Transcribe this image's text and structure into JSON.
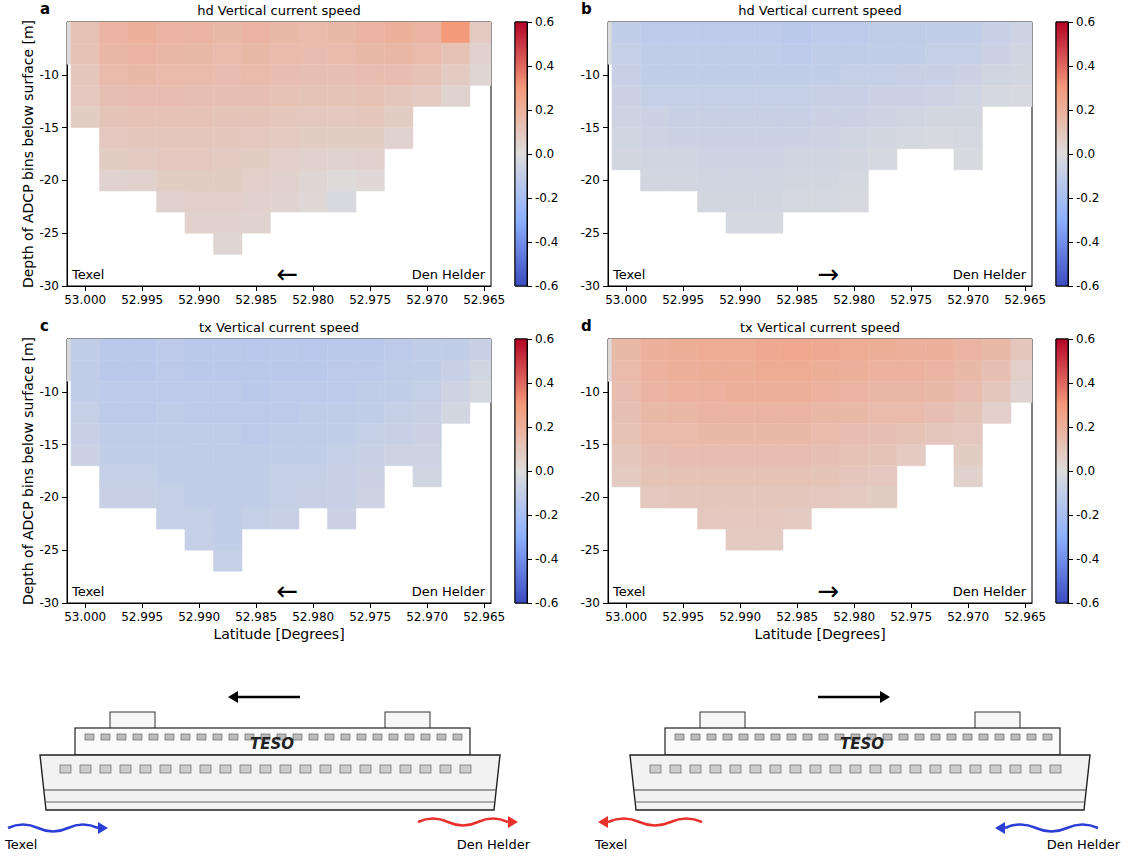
{
  "chart_data": [
    {
      "type": "heatmap",
      "panel_label": "a",
      "title": "hd Vertical current speed",
      "y_label": "Depth of ADCP bins below surface [m]",
      "x": [
        53.0025,
        53.0,
        52.9975,
        52.995,
        52.9925,
        52.99,
        52.9875,
        52.985,
        52.9825,
        52.98,
        52.9775,
        52.975,
        52.9725,
        52.97,
        52.9675,
        52.965
      ],
      "y": [
        -6,
        -8,
        -10,
        -12,
        -14,
        -16,
        -18,
        -20,
        -22,
        -24,
        -26
      ],
      "values": [
        [
          0.0,
          0.12,
          0.18,
          0.2,
          0.18,
          0.18,
          0.16,
          0.18,
          0.16,
          0.15,
          0.16,
          0.18,
          0.2,
          0.18,
          0.3,
          0.08
        ],
        [
          0.0,
          0.12,
          0.17,
          0.18,
          0.17,
          0.16,
          0.15,
          0.16,
          0.15,
          0.14,
          0.15,
          0.16,
          0.17,
          0.15,
          0.12,
          0.05
        ],
        [
          null,
          0.1,
          0.15,
          0.16,
          0.15,
          0.15,
          0.14,
          0.15,
          0.14,
          0.13,
          0.13,
          0.14,
          0.14,
          0.12,
          0.08,
          0.03
        ],
        [
          null,
          0.09,
          0.13,
          0.14,
          0.14,
          0.13,
          0.13,
          0.13,
          0.12,
          0.11,
          0.11,
          0.12,
          0.1,
          0.08,
          0.04,
          null
        ],
        [
          null,
          0.07,
          0.11,
          0.12,
          0.12,
          0.12,
          0.11,
          0.11,
          0.1,
          0.09,
          0.09,
          0.1,
          0.07,
          null,
          null,
          null
        ],
        [
          null,
          null,
          0.09,
          0.1,
          0.1,
          0.1,
          0.1,
          0.09,
          0.08,
          0.07,
          0.07,
          0.07,
          0.04,
          null,
          null,
          null
        ],
        [
          null,
          null,
          0.07,
          0.08,
          0.09,
          0.09,
          0.08,
          0.07,
          0.06,
          0.05,
          0.04,
          0.05,
          null,
          null,
          null,
          null
        ],
        [
          null,
          null,
          0.04,
          0.05,
          0.07,
          0.07,
          0.07,
          0.06,
          0.05,
          0.03,
          0.01,
          0.02,
          null,
          null,
          null,
          null
        ],
        [
          null,
          null,
          null,
          null,
          0.05,
          0.06,
          0.06,
          0.05,
          0.04,
          0.02,
          -0.02,
          null,
          null,
          null,
          null,
          null
        ],
        [
          null,
          null,
          null,
          null,
          null,
          0.05,
          0.05,
          0.04,
          null,
          null,
          null,
          null,
          null,
          null,
          null,
          null
        ],
        [
          null,
          null,
          null,
          null,
          null,
          null,
          0.03,
          null,
          null,
          null,
          null,
          null,
          null,
          null,
          null,
          null
        ]
      ],
      "xlim": [
        53.0016,
        52.9644
      ],
      "xticks": [
        {
          "value": 53,
          "label": "53.000"
        },
        52.995,
        {
          "value": 52.99,
          "label": "52.990"
        },
        52.985,
        {
          "value": 52.98,
          "label": "52.980"
        },
        52.975,
        {
          "value": 52.97,
          "label": "52.970"
        },
        52.965
      ],
      "ylim": [
        -30,
        -5
      ],
      "yticks": [
        -30,
        -25,
        -20,
        -15,
        -10
      ],
      "colorbar": {
        "range": [
          -0.6,
          0.6
        ],
        "ticks": [
          -0.6,
          -0.4,
          -0.2,
          {
            "value": 0,
            "label": "0.0"
          },
          0.2,
          0.4,
          0.6
        ]
      },
      "annotations": [
        "Texel",
        "←",
        "Den Helder"
      ]
    },
    {
      "type": "heatmap",
      "panel_label": "b",
      "title": "hd Vertical current speed",
      "x": [
        53.0025,
        53.0,
        52.9975,
        52.995,
        52.9925,
        52.99,
        52.9875,
        52.985,
        52.9825,
        52.98,
        52.9775,
        52.975,
        52.9725,
        52.97,
        52.9675,
        52.965
      ],
      "y": [
        -6,
        -8,
        -10,
        -12,
        -14,
        -16,
        -18,
        -20,
        -22,
        -24,
        -26
      ],
      "values": [
        [
          0.0,
          -0.1,
          -0.12,
          -0.12,
          -0.12,
          -0.12,
          -0.12,
          -0.13,
          -0.12,
          -0.12,
          -0.11,
          -0.11,
          -0.1,
          -0.1,
          -0.08,
          -0.06
        ],
        [
          -0.02,
          -0.09,
          -0.11,
          -0.11,
          -0.11,
          -0.11,
          -0.11,
          -0.12,
          -0.11,
          -0.11,
          -0.1,
          -0.1,
          -0.09,
          -0.09,
          -0.07,
          -0.05
        ],
        [
          null,
          -0.08,
          -0.1,
          -0.1,
          -0.1,
          -0.1,
          -0.1,
          -0.1,
          -0.1,
          -0.09,
          -0.09,
          -0.08,
          -0.08,
          -0.07,
          -0.05,
          -0.04
        ],
        [
          null,
          -0.07,
          -0.09,
          -0.09,
          -0.09,
          -0.09,
          -0.09,
          -0.09,
          -0.08,
          -0.08,
          -0.07,
          -0.07,
          -0.06,
          -0.05,
          -0.03,
          -0.02
        ],
        [
          null,
          -0.06,
          -0.07,
          -0.08,
          -0.08,
          -0.08,
          -0.08,
          -0.08,
          -0.07,
          -0.07,
          -0.06,
          -0.05,
          -0.04,
          -0.04,
          null,
          null
        ],
        [
          null,
          -0.05,
          -0.06,
          -0.07,
          -0.07,
          -0.07,
          -0.07,
          -0.07,
          -0.06,
          -0.05,
          -0.04,
          -0.03,
          -0.02,
          -0.03,
          null,
          null
        ],
        [
          null,
          -0.04,
          -0.05,
          -0.05,
          -0.06,
          -0.06,
          -0.06,
          -0.05,
          -0.05,
          -0.04,
          -0.03,
          null,
          null,
          -0.02,
          null,
          null
        ],
        [
          null,
          null,
          -0.04,
          -0.04,
          -0.05,
          -0.05,
          -0.05,
          -0.04,
          -0.04,
          -0.03,
          null,
          null,
          null,
          null,
          null,
          null
        ],
        [
          null,
          null,
          null,
          null,
          -0.04,
          -0.04,
          -0.04,
          -0.03,
          -0.03,
          -0.02,
          null,
          null,
          null,
          null,
          null,
          null
        ],
        [
          null,
          null,
          null,
          null,
          null,
          -0.03,
          -0.03,
          null,
          null,
          null,
          null,
          null,
          null,
          null,
          null,
          null
        ],
        [
          null,
          null,
          null,
          null,
          null,
          null,
          null,
          null,
          null,
          null,
          null,
          null,
          null,
          null,
          null,
          null
        ]
      ],
      "xlim": [
        53.0016,
        52.9644
      ],
      "xticks": [
        {
          "value": 53,
          "label": "53.000"
        },
        52.995,
        {
          "value": 52.99,
          "label": "52.990"
        },
        52.985,
        {
          "value": 52.98,
          "label": "52.980"
        },
        52.975,
        {
          "value": 52.97,
          "label": "52.970"
        },
        52.965
      ],
      "ylim": [
        -30,
        -5
      ],
      "yticks": [
        -30,
        -25,
        -20,
        -15,
        -10
      ],
      "colorbar": {
        "range": [
          -0.6,
          0.6
        ],
        "ticks": [
          -0.6,
          -0.4,
          -0.2,
          {
            "value": 0,
            "label": "0.0"
          },
          0.2,
          0.4,
          0.6
        ]
      },
      "annotations": [
        "Texel",
        "→",
        "Den Helder"
      ]
    },
    {
      "type": "heatmap",
      "panel_label": "c",
      "title": "tx Vertical current speed",
      "x_label": "Latitude [Degrees]",
      "y_label": "Depth of ADCP bins below surface [m]",
      "x": [
        53.0025,
        53.0,
        52.9975,
        52.995,
        52.9925,
        52.99,
        52.9875,
        52.985,
        52.9825,
        52.98,
        52.9775,
        52.975,
        52.9725,
        52.97,
        52.9675,
        52.965
      ],
      "y": [
        -6,
        -8,
        -10,
        -12,
        -14,
        -16,
        -18,
        -20,
        -22,
        -24,
        -26
      ],
      "values": [
        [
          -0.02,
          -0.1,
          -0.13,
          -0.13,
          -0.12,
          -0.13,
          -0.13,
          -0.14,
          -0.13,
          -0.14,
          -0.13,
          -0.13,
          -0.12,
          -0.1,
          -0.1,
          -0.08
        ],
        [
          -0.02,
          -0.1,
          -0.13,
          -0.13,
          -0.12,
          -0.13,
          -0.13,
          -0.13,
          -0.13,
          -0.13,
          -0.12,
          -0.12,
          -0.11,
          -0.1,
          -0.08,
          -0.05
        ],
        [
          null,
          -0.1,
          -0.12,
          -0.12,
          -0.12,
          -0.12,
          -0.12,
          -0.13,
          -0.12,
          -0.12,
          -0.12,
          -0.11,
          -0.1,
          -0.09,
          -0.06,
          -0.03
        ],
        [
          null,
          -0.09,
          -0.12,
          -0.12,
          -0.11,
          -0.12,
          -0.12,
          -0.12,
          -0.12,
          -0.11,
          -0.11,
          -0.1,
          -0.09,
          -0.08,
          -0.04,
          null
        ],
        [
          null,
          -0.08,
          -0.11,
          -0.11,
          -0.11,
          -0.11,
          -0.11,
          -0.12,
          -0.11,
          -0.11,
          -0.1,
          -0.09,
          -0.08,
          -0.07,
          null,
          null
        ],
        [
          null,
          -0.07,
          -0.1,
          -0.1,
          -0.1,
          -0.11,
          -0.11,
          -0.11,
          -0.1,
          -0.1,
          -0.09,
          -0.08,
          -0.06,
          -0.06,
          null,
          null
        ],
        [
          null,
          null,
          -0.09,
          -0.09,
          -0.1,
          -0.1,
          -0.1,
          -0.1,
          -0.09,
          -0.09,
          -0.08,
          -0.07,
          null,
          -0.05,
          null,
          null
        ],
        [
          null,
          null,
          -0.08,
          -0.08,
          -0.09,
          -0.1,
          -0.1,
          -0.1,
          -0.09,
          -0.08,
          -0.08,
          -0.06,
          null,
          null,
          null,
          null
        ],
        [
          null,
          null,
          null,
          null,
          -0.09,
          -0.09,
          -0.1,
          -0.09,
          -0.08,
          null,
          -0.07,
          null,
          null,
          null,
          null,
          null
        ],
        [
          null,
          null,
          null,
          null,
          null,
          -0.09,
          -0.1,
          null,
          null,
          null,
          null,
          null,
          null,
          null,
          null,
          null
        ],
        [
          null,
          null,
          null,
          null,
          null,
          null,
          -0.09,
          null,
          null,
          null,
          null,
          null,
          null,
          null,
          null,
          null
        ]
      ],
      "xlim": [
        53.0016,
        52.9644
      ],
      "xticks": [
        {
          "value": 53,
          "label": "53.000"
        },
        52.995,
        {
          "value": 52.99,
          "label": "52.990"
        },
        52.985,
        {
          "value": 52.98,
          "label": "52.980"
        },
        52.975,
        {
          "value": 52.97,
          "label": "52.970"
        },
        52.965
      ],
      "ylim": [
        -30,
        -5
      ],
      "yticks": [
        -30,
        -25,
        -20,
        -15,
        -10
      ],
      "colorbar": {
        "range": [
          -0.6,
          0.6
        ],
        "ticks": [
          -0.6,
          -0.4,
          -0.2,
          {
            "value": 0,
            "label": "0.0"
          },
          0.2,
          0.4,
          0.6
        ]
      },
      "annotations": [
        "Texel",
        "←",
        "Den Helder"
      ]
    },
    {
      "type": "heatmap",
      "panel_label": "d",
      "title": "tx Vertical current speed",
      "x_label": "Latitude [Degrees]",
      "x": [
        53.0025,
        53.0,
        52.9975,
        52.995,
        52.9925,
        52.99,
        52.9875,
        52.985,
        52.9825,
        52.98,
        52.9775,
        52.975,
        52.9725,
        52.97,
        52.9675,
        52.965
      ],
      "y": [
        -6,
        -8,
        -10,
        -12,
        -14,
        -16,
        -18,
        -20,
        -22,
        -24,
        -26
      ],
      "values": [
        [
          0.02,
          0.16,
          0.2,
          0.21,
          0.22,
          0.22,
          0.23,
          0.24,
          0.23,
          0.22,
          0.21,
          0.2,
          0.2,
          0.18,
          0.16,
          0.1
        ],
        [
          0.02,
          0.15,
          0.19,
          0.2,
          0.21,
          0.21,
          0.22,
          0.22,
          0.21,
          0.2,
          0.19,
          0.19,
          0.18,
          0.16,
          0.13,
          0.06
        ],
        [
          null,
          0.14,
          0.18,
          0.19,
          0.19,
          0.2,
          0.2,
          0.2,
          0.19,
          0.18,
          0.17,
          0.17,
          0.16,
          0.14,
          0.1,
          0.04
        ],
        [
          null,
          0.13,
          0.16,
          0.17,
          0.18,
          0.18,
          0.18,
          0.18,
          0.17,
          0.16,
          0.15,
          0.15,
          0.13,
          0.11,
          0.06,
          null
        ],
        [
          null,
          0.12,
          0.15,
          0.15,
          0.16,
          0.16,
          0.16,
          0.16,
          0.15,
          0.14,
          0.13,
          0.12,
          0.1,
          0.09,
          null,
          null
        ],
        [
          null,
          0.1,
          0.13,
          0.14,
          0.14,
          0.14,
          0.14,
          0.14,
          0.13,
          0.12,
          0.11,
          0.08,
          null,
          0.07,
          null,
          null
        ],
        [
          null,
          0.08,
          0.11,
          0.12,
          0.12,
          0.12,
          0.12,
          0.12,
          0.11,
          0.1,
          0.09,
          null,
          null,
          0.05,
          null,
          null
        ],
        [
          null,
          null,
          0.09,
          0.1,
          0.1,
          0.1,
          0.1,
          0.1,
          0.09,
          0.08,
          0.07,
          null,
          null,
          null,
          null,
          null
        ],
        [
          null,
          null,
          null,
          null,
          0.09,
          0.09,
          0.09,
          0.08,
          null,
          null,
          null,
          null,
          null,
          null,
          null,
          null
        ],
        [
          null,
          null,
          null,
          null,
          null,
          0.08,
          0.08,
          null,
          null,
          null,
          null,
          null,
          null,
          null,
          null,
          null
        ],
        [
          null,
          null,
          null,
          null,
          null,
          null,
          null,
          null,
          null,
          null,
          null,
          null,
          null,
          null,
          null,
          null
        ]
      ],
      "xlim": [
        53.0016,
        52.9644
      ],
      "xticks": [
        {
          "value": 53,
          "label": "53.000"
        },
        52.995,
        {
          "value": 52.99,
          "label": "52.990"
        },
        52.985,
        {
          "value": 52.98,
          "label": "52.980"
        },
        52.975,
        {
          "value": 52.97,
          "label": "52.970"
        },
        52.965
      ],
      "ylim": [
        -30,
        -5
      ],
      "yticks": [
        -30,
        -25,
        -20,
        -15,
        -10
      ],
      "colorbar": {
        "range": [
          -0.6,
          0.6
        ],
        "ticks": [
          -0.6,
          -0.4,
          -0.2,
          {
            "value": 0,
            "label": "0.0"
          },
          0.2,
          0.4,
          0.6
        ]
      },
      "annotations": [
        "Texel",
        "→",
        "Den Helder"
      ]
    }
  ],
  "illustration": [
    {
      "direction": "left",
      "ship_name": "TESO",
      "left_label": "Texel",
      "right_label": "Den Helder"
    },
    {
      "direction": "right",
      "ship_name": "TESO",
      "left_label": "Texel",
      "right_label": "Den Helder"
    }
  ]
}
